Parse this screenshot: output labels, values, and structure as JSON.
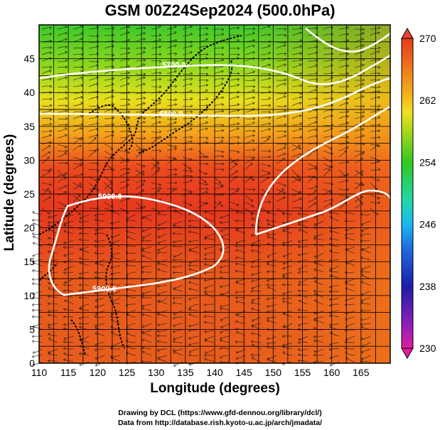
{
  "title": "GSM 00Z24Sep2024 (500.0hPa)",
  "xlabel": "Longitude (degrees)",
  "ylabel": "Latitude (degrees)",
  "credit_line1": "Drawing by DCL (https://www.gfd-dennou.org/library/dcl/)",
  "credit_line2": "Data from http://database.rish.kyoto-u.ac.jp/arch/jmadata/",
  "chart_data": {
    "type": "heatmap",
    "title": "GSM 00Z24Sep2024 (500.0hPa)",
    "xlabel": "Longitude (degrees)",
    "ylabel": "Latitude (degrees)",
    "xlim": [
      110,
      170
    ],
    "ylim": [
      0,
      50
    ],
    "x_ticks": [
      110,
      115,
      120,
      125,
      130,
      135,
      140,
      145,
      150,
      155,
      160,
      165
    ],
    "y_ticks": [
      0,
      5,
      10,
      15,
      20,
      25,
      30,
      35,
      40,
      45
    ],
    "colorbar": {
      "range": [
        230,
        270
      ],
      "ticks": [
        230,
        238,
        246,
        254,
        262,
        270
      ],
      "colors": [
        "#e01c9e",
        "#7a1fb8",
        "#1b1ea8",
        "#1f6ae0",
        "#19b9f0",
        "#1fd8b0",
        "#30c81e",
        "#9ad81a",
        "#f0e020",
        "#f5b01a",
        "#f07a1a",
        "#e63a1a",
        "#e8403a"
      ]
    },
    "contours": [
      {
        "label": "5700.0",
        "lat": 45.5
      },
      {
        "label": "5800.0",
        "lat": 39.5
      },
      {
        "label": "5900.0",
        "lat": 26.0
      },
      {
        "label": "5900.0",
        "lat": 10.5
      }
    ],
    "grid": true
  }
}
